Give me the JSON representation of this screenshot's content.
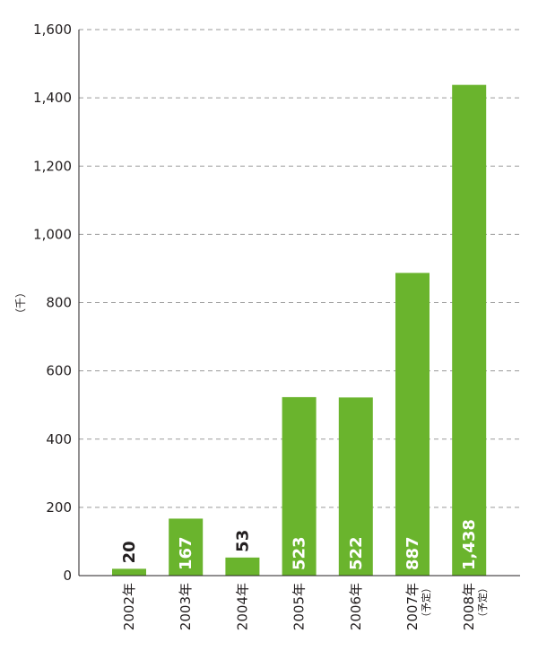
{
  "chart_data": {
    "type": "bar",
    "categories": [
      "2002年",
      "2003年",
      "2004年",
      "2005年",
      "2006年",
      "2007年",
      "2008年"
    ],
    "category_notes": [
      "",
      "",
      "",
      "",
      "",
      "（予定）",
      "（予定）"
    ],
    "values": [
      20,
      167,
      53,
      523,
      522,
      887,
      1438
    ],
    "value_labels": [
      "20",
      "167",
      "53",
      "523",
      "522",
      "887",
      "1,438"
    ],
    "y_ticks": [
      "0",
      "200",
      "400",
      "600",
      "800",
      "1,000",
      "1,200",
      "1,400",
      "1,600"
    ],
    "ylim": [
      0,
      1600
    ],
    "ylabel": "（千）",
    "xlabel": "",
    "title": "",
    "grid": true,
    "colors": {
      "bar": "#6ab42d",
      "label_inside": "#ffffff",
      "label_outside": "#231f20",
      "grid": "#9a9a9a",
      "axis": "#231f20"
    }
  }
}
